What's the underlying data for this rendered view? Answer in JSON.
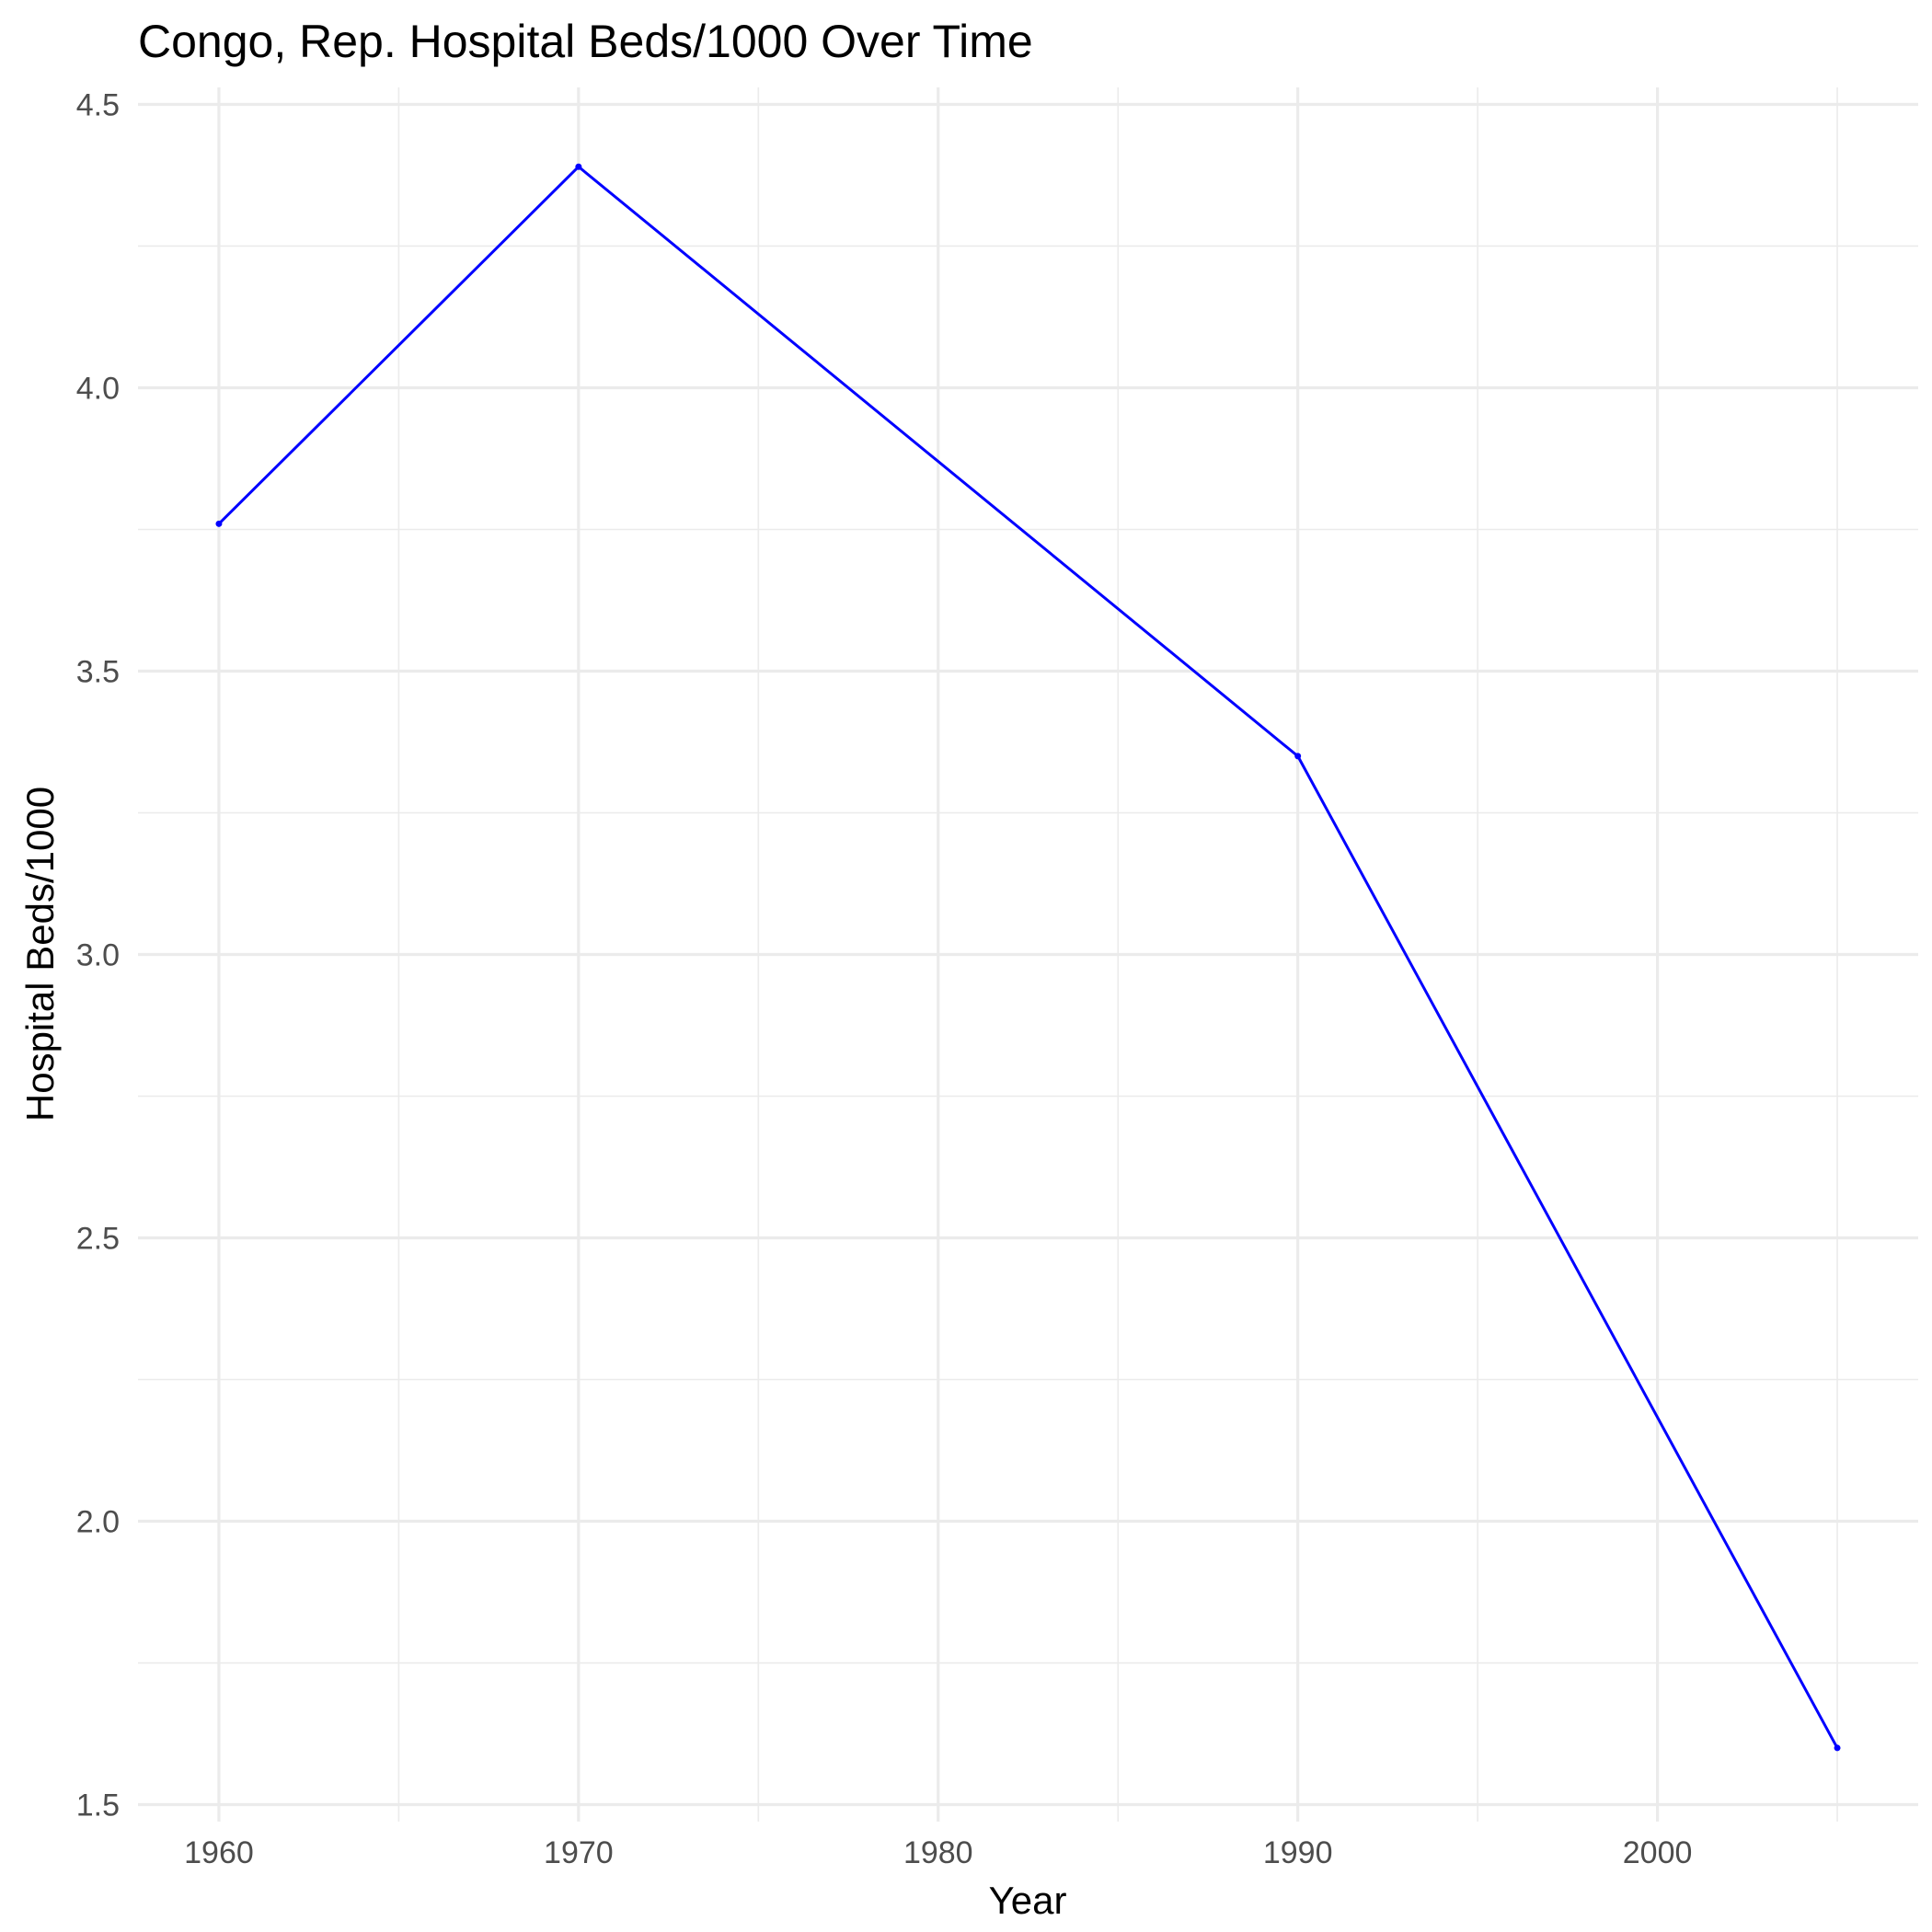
{
  "chart_data": {
    "type": "line",
    "title": "Congo, Rep. Hospital Beds/1000 Over Time",
    "xlabel": "Year",
    "ylabel": "Hospital Beds/1000",
    "xlim": [
      1957.75,
      2007.25
    ],
    "ylim": [
      1.47,
      4.53
    ],
    "x_ticks": [
      1960,
      1970,
      1980,
      1990,
      2000
    ],
    "x_tick_labels": [
      "1960",
      "1970",
      "1980",
      "1990",
      "2000"
    ],
    "x_minor_ticks": [
      1965,
      1975,
      1985,
      1995,
      2005
    ],
    "y_ticks": [
      1.5,
      2.0,
      2.5,
      3.0,
      3.5,
      4.0,
      4.5
    ],
    "y_tick_labels": [
      "1.5",
      "2.0",
      "2.5",
      "3.0",
      "3.5",
      "4.0",
      "4.5"
    ],
    "y_minor_ticks": [
      1.75,
      2.25,
      2.75,
      3.25,
      3.75,
      4.25
    ],
    "grid": true,
    "legend": "none",
    "series": [
      {
        "color": "#0000ff",
        "x": [
          1960,
          1970,
          1990,
          2005
        ],
        "y": [
          3.76,
          4.39,
          3.35,
          1.6
        ]
      }
    ]
  }
}
